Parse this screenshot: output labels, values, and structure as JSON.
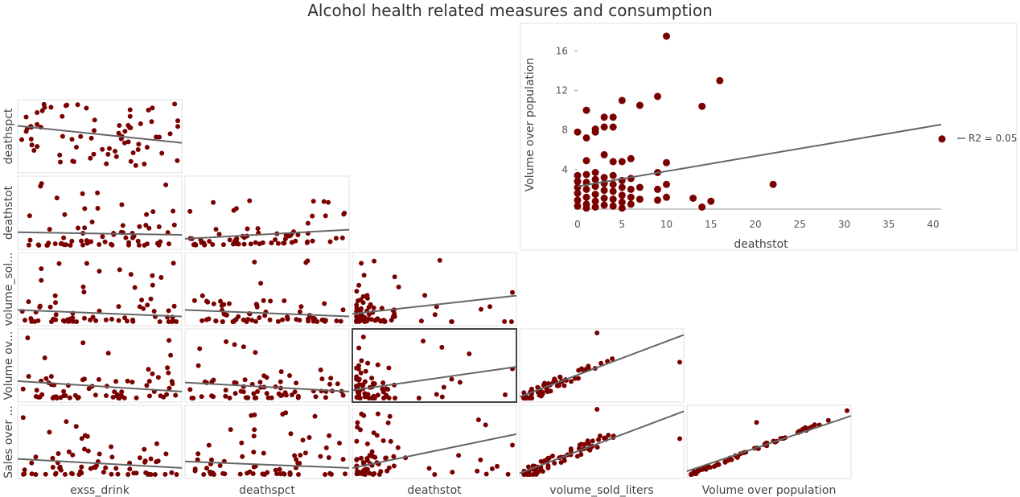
{
  "title": "Alcohol health related measures and consumption",
  "colors": {
    "point": "#7a0000",
    "trend": "#666666",
    "frame": "#e0e0e0",
    "selected_frame": "#444444"
  },
  "chart_data": [
    {
      "type": "scatter-matrix",
      "variables": [
        "exss_drink",
        "deathspct",
        "deathstot",
        "volume_sold_liters",
        "Volume over population",
        "Sales over population"
      ],
      "column_labels": [
        "exss_drink",
        "deathspct",
        "deathstot",
        "volume_sold_liters",
        "Volume over population"
      ],
      "row_labels": [
        "deathspct",
        "deathstot",
        "volume_sol...",
        "Volume ov...",
        "Sales over ..."
      ],
      "selected_cell": {
        "row": "Volume over population",
        "col": "deathstot"
      },
      "cells": [
        {
          "row": 0,
          "col": 0,
          "pattern": "cloud",
          "trend": [
            0.66,
            0.4
          ]
        },
        {
          "row": 1,
          "col": 0,
          "pattern": "low",
          "trend": [
            0.2,
            0.16
          ]
        },
        {
          "row": 1,
          "col": 1,
          "pattern": "low-rising",
          "trend": [
            0.1,
            0.24
          ]
        },
        {
          "row": 2,
          "col": 0,
          "pattern": "low",
          "trend": [
            0.18,
            0.08
          ]
        },
        {
          "row": 2,
          "col": 1,
          "pattern": "low",
          "trend": [
            0.18,
            0.08
          ]
        },
        {
          "row": 2,
          "col": 2,
          "pattern": "left-cluster",
          "trend": [
            0.12,
            0.4
          ]
        },
        {
          "row": 3,
          "col": 0,
          "pattern": "low",
          "trend": [
            0.26,
            0.1
          ]
        },
        {
          "row": 3,
          "col": 1,
          "pattern": "low",
          "trend": [
            0.24,
            0.1
          ]
        },
        {
          "row": 3,
          "col": 2,
          "pattern": "left-cluster",
          "trend": [
            0.12,
            0.48
          ]
        },
        {
          "row": 3,
          "col": 3,
          "pattern": "linear",
          "trend": [
            0.02,
            0.97
          ]
        },
        {
          "row": 4,
          "col": 0,
          "pattern": "low",
          "trend": [
            0.24,
            0.1
          ]
        },
        {
          "row": 4,
          "col": 1,
          "pattern": "low",
          "trend": [
            0.2,
            0.1
          ]
        },
        {
          "row": 4,
          "col": 2,
          "pattern": "left-cluster",
          "trend": [
            0.1,
            0.62
          ]
        },
        {
          "row": 4,
          "col": 3,
          "pattern": "linear",
          "trend": [
            0.02,
            0.97
          ]
        },
        {
          "row": 4,
          "col": 4,
          "pattern": "tight-linear",
          "trend": [
            0.05,
            0.9
          ]
        }
      ]
    },
    {
      "type": "scatter",
      "title": "",
      "xlabel": "deathstot",
      "ylabel": "Volume over population",
      "xlim": [
        -1,
        41
      ],
      "ylim": [
        0,
        17.5
      ],
      "xticks": [
        0,
        5,
        10,
        15,
        20,
        25,
        30,
        35,
        40
      ],
      "yticks": [
        4,
        8,
        12,
        16
      ],
      "legend": {
        "label": "R2 = 0.05",
        "position": "right"
      },
      "trendline": {
        "intercept": 2.3,
        "slope": 0.15
      },
      "points": [
        [
          0,
          7.8
        ],
        [
          1,
          7.2
        ],
        [
          1,
          10.0
        ],
        [
          2,
          7.8
        ],
        [
          2,
          8.1
        ],
        [
          3,
          9.3
        ],
        [
          3,
          8.3
        ],
        [
          4,
          9.3
        ],
        [
          4,
          8.3
        ],
        [
          5,
          11.0
        ],
        [
          7,
          10.5
        ],
        [
          9,
          11.4
        ],
        [
          10,
          17.5
        ],
        [
          16,
          13.0
        ],
        [
          14,
          10.4
        ],
        [
          41,
          7.1
        ],
        [
          0,
          3.4
        ],
        [
          0,
          2.8
        ],
        [
          0,
          2.2
        ],
        [
          0,
          1.6
        ],
        [
          0,
          0.9
        ],
        [
          0,
          0.3
        ],
        [
          1,
          4.9
        ],
        [
          1,
          3.5
        ],
        [
          1,
          2.7
        ],
        [
          1,
          2.0
        ],
        [
          1,
          1.2
        ],
        [
          1,
          0.5
        ],
        [
          1,
          0.1
        ],
        [
          2,
          3.7
        ],
        [
          2,
          3.0
        ],
        [
          2,
          2.3
        ],
        [
          2,
          1.5
        ],
        [
          2,
          0.8
        ],
        [
          2,
          0.2
        ],
        [
          3,
          5.5
        ],
        [
          3,
          3.2
        ],
        [
          3,
          2.6
        ],
        [
          3,
          1.9
        ],
        [
          3,
          1.1
        ],
        [
          3,
          0.4
        ],
        [
          4,
          4.8
        ],
        [
          4,
          3.4
        ],
        [
          4,
          2.5
        ],
        [
          4,
          1.8
        ],
        [
          4,
          1.0
        ],
        [
          4,
          0.3
        ],
        [
          5,
          4.8
        ],
        [
          5,
          2.9
        ],
        [
          5,
          2.2
        ],
        [
          5,
          1.4
        ],
        [
          5,
          0.7
        ],
        [
          5,
          0.1
        ],
        [
          6,
          5.1
        ],
        [
          6,
          3.1
        ],
        [
          6,
          2.0
        ],
        [
          6,
          1.2
        ],
        [
          6,
          0.5
        ],
        [
          7,
          2.2
        ],
        [
          7,
          1.0
        ],
        [
          9,
          3.7
        ],
        [
          9,
          2.0
        ],
        [
          9,
          0.9
        ],
        [
          10,
          4.7
        ],
        [
          10,
          2.5
        ],
        [
          10,
          1.2
        ],
        [
          13,
          1.1
        ],
        [
          14,
          0.2
        ],
        [
          15,
          0.8
        ],
        [
          22,
          2.5
        ]
      ]
    }
  ]
}
